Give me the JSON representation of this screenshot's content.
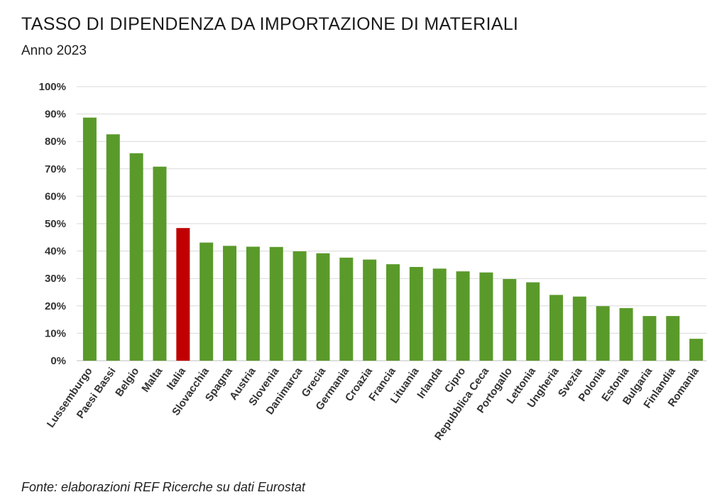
{
  "header": {
    "title": "TASSO DI DIPENDENZA DA IMPORTAZIONE DI MATERIALI",
    "subtitle": "Anno 2023"
  },
  "footer": {
    "source": "Fonte: elaborazioni REF Ricerche su dati Eurostat"
  },
  "colors": {
    "bar": "#5a9a2a",
    "highlight": "#c00000",
    "grid": "#d9d9d9"
  },
  "chart_data": {
    "type": "bar",
    "title": "TASSO DI DIPENDENZA DA IMPORTAZIONE DI MATERIALI",
    "subtitle": "Anno 2023",
    "xlabel": "",
    "ylabel": "",
    "ylim": [
      0,
      100
    ],
    "y_ticks": [
      "0%",
      "10%",
      "20%",
      "30%",
      "40%",
      "50%",
      "60%",
      "70%",
      "80%",
      "90%",
      "100%"
    ],
    "grid": true,
    "highlight_category": "Italia",
    "categories": [
      "Lussemburgo",
      "Paesi Bassi",
      "Belgio",
      "Malta",
      "Italia",
      "Slovacchia",
      "Spagna",
      "Austria",
      "Slovenia",
      "Danimarca",
      "Grecia",
      "Germania",
      "Croazia",
      "Francia",
      "Lituania",
      "Irlanda",
      "Cipro",
      "Repubblica Ceca",
      "Portogallo",
      "Lettonia",
      "Ungheria",
      "Svezia",
      "Polonia",
      "Estonia",
      "Bulgaria",
      "Finlandia",
      "Romania"
    ],
    "values": [
      88.7,
      82.6,
      75.7,
      70.8,
      48.4,
      43.1,
      41.9,
      41.6,
      41.5,
      39.9,
      39.2,
      37.6,
      36.9,
      35.2,
      34.2,
      33.6,
      32.6,
      32.2,
      29.8,
      28.6,
      24.0,
      23.4,
      19.9,
      19.2,
      16.3,
      16.3,
      8.0
    ]
  }
}
